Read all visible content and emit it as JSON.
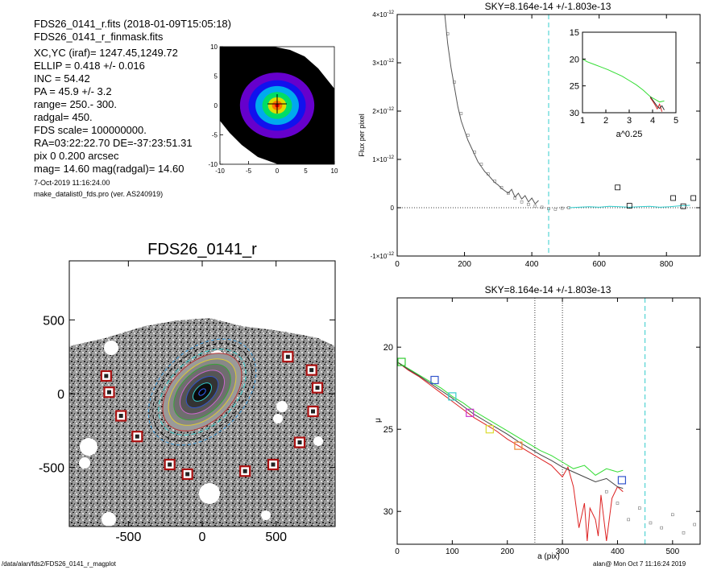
{
  "info": {
    "lines": [
      "FDS26_0141_r.fits  (2018-01-09T15:05:18)",
      "FDS26_0141_r_finmask.fits",
      "XC,YC (iraf)=  1247.45,1249.72",
      "ELLIP = 0.418 +/- 0.016",
      "INC   = 54.42",
      "PA    =  45.9 +/-   3.2",
      "range=  250.-  300.",
      "radgal=  450.",
      "FDS scale=  100000000.",
      "RA=03:22:22.70  DE=-37:23:51.31",
      "pix 0 0.200 arcsec",
      "mag=  14.60  mag(radgal)=  14.60"
    ],
    "date": "7-Oct-2019 11:16:24.00",
    "program": "make_datalist0_fds.pro (ver. AS240919)"
  },
  "footer": {
    "path": "/data/alan/fds2/FDS26_0141_r_magplot",
    "stamp": "alan@  Mon Oct  7 11:16:24 2019"
  },
  "colors": {
    "sky_line": "#33cccc",
    "profile_green": "#33dd33",
    "profile_red": "#dd2222",
    "mask_box": "#aa1111"
  },
  "chart_data": [
    {
      "type": "heatmap",
      "id": "thumbnail",
      "title": "",
      "xlim": [
        -10,
        10
      ],
      "ylim": [
        -10,
        10
      ],
      "xticks": [
        -10,
        -5,
        0,
        5,
        10
      ],
      "yticks": [
        10,
        5,
        0,
        -5,
        -10
      ],
      "xticklabels": [
        "-10",
        "-5",
        "0",
        "5",
        "10"
      ],
      "yticklabels": [
        "10",
        "5",
        "0",
        "-5",
        "-10"
      ],
      "contours": [
        {
          "rx": 6.5,
          "ry": 5.6,
          "color": "#6600cc"
        },
        {
          "rx": 5.0,
          "ry": 4.3,
          "color": "#1111ee"
        },
        {
          "rx": 3.8,
          "ry": 3.3,
          "color": "#00aaee"
        },
        {
          "rx": 2.6,
          "ry": 2.3,
          "color": "#00dd66"
        },
        {
          "rx": 1.6,
          "ry": 1.4,
          "color": "#dddd00"
        },
        {
          "rx": 0.9,
          "ry": 0.8,
          "color": "#ff7700"
        },
        {
          "rx": 0.4,
          "ry": 0.35,
          "color": "#ee0000"
        }
      ]
    },
    {
      "type": "line",
      "id": "flux",
      "title": "SKY=8.164e-14 +/-1.803e-13",
      "xlabel": "",
      "ylabel": "Flux per pixel",
      "xlim": [
        0,
        900
      ],
      "ylim": [
        -1e-12,
        4e-12
      ],
      "xticks": [
        0,
        200,
        400,
        600,
        800
      ],
      "xticklabels": [
        "0",
        "200",
        "400",
        "600",
        "800"
      ],
      "yticks": [
        -1e-12,
        0,
        1e-12,
        2e-12,
        3e-12,
        4e-12
      ],
      "ytick_base": [
        "-1×10",
        "0",
        "1×10",
        "2×10",
        "3×10",
        "4×10"
      ],
      "ytick_exp": [
        "-12",
        "",
        "-12",
        "-12",
        "-12",
        "-12"
      ],
      "sky_x": 450,
      "zero_line": 0,
      "series": [
        {
          "color": "#555555",
          "x": [
            140,
            150,
            160,
            170,
            180,
            190,
            200,
            210,
            220,
            230,
            240,
            250,
            260,
            270,
            280,
            290,
            300,
            310,
            320,
            330,
            340,
            350,
            360,
            370,
            380,
            390,
            400,
            410,
            420
          ],
          "y": [
            4.1e-12,
            3.4e-12,
            2.9e-12,
            2.5e-12,
            2.1e-12,
            1.8e-12,
            1.6e-12,
            1.4e-12,
            1.25e-12,
            1.1e-12,
            9.5e-13,
            8.5e-13,
            7.5e-13,
            6.8e-13,
            6e-13,
            5.2e-13,
            4.7e-13,
            4e-13,
            3.5e-13,
            3e-13,
            3.8e-13,
            2.2e-13,
            3e-13,
            1.8e-13,
            2.5e-13,
            1.2e-13,
            2e-13,
            8e-14,
            1.5e-13
          ]
        },
        {
          "color": "#33cccc",
          "x": [
            510,
            540,
            570,
            600,
            630,
            660,
            690,
            720,
            750,
            780,
            810,
            840,
            870
          ],
          "y": [
            0.0,
            1e-14,
            2e-14,
            1e-14,
            3e-14,
            2e-14,
            1e-14,
            2e-14,
            3e-14,
            1e-14,
            2e-14,
            4e-14,
            5e-14
          ]
        }
      ],
      "points": {
        "x": [
          150,
          170,
          190,
          210,
          230,
          250,
          270,
          290,
          310,
          330,
          350,
          370,
          390,
          410,
          430,
          450,
          470,
          490,
          510
        ],
        "y": [
          3.6e-12,
          2.6e-12,
          1.95e-12,
          1.5e-12,
          1.15e-12,
          9e-13,
          7e-13,
          5.5e-13,
          4.2e-13,
          3e-13,
          2e-13,
          1.2e-13,
          7e-14,
          3e-14,
          1e-14,
          -2e-14,
          -3e-14,
          -1e-14,
          0.0
        ]
      },
      "boxes": {
        "x": [
          655,
          690,
          820,
          850,
          880
        ],
        "y": [
          4.2e-13,
          4e-14,
          2e-13,
          3e-14,
          2e-13
        ]
      },
      "inset": {
        "xlabel": "a^0.25",
        "xlim": [
          1,
          5
        ],
        "ylim": [
          15,
          30
        ],
        "xticks": [
          1,
          2,
          3,
          4,
          5
        ],
        "xticklabels": [
          "1",
          "2",
          "3",
          "4",
          "5"
        ],
        "yticks": [
          15,
          20,
          25,
          30
        ],
        "yticklabels": [
          "15",
          "20",
          "25",
          "30"
        ],
        "series": [
          {
            "color": "#33dd33",
            "x": [
              1.0,
              1.2,
              1.5,
              1.8,
              2.1,
              2.4,
              2.7,
              3.0,
              3.3,
              3.6,
              3.9,
              4.1,
              4.3,
              4.5
            ],
            "y": [
              20.0,
              20.5,
              21.0,
              21.5,
              22.0,
              22.6,
              23.2,
              24.0,
              24.8,
              25.8,
              27.0,
              27.5,
              28.0,
              27.8
            ]
          },
          {
            "color": "#dd2222",
            "x": [
              3.9,
              4.0,
              4.1,
              4.2,
              4.3,
              4.4
            ],
            "y": [
              27.2,
              27.8,
              28.5,
              29.3,
              28.4,
              29.8
            ]
          },
          {
            "color": "#333333",
            "x": [
              3.9,
              4.0,
              4.1,
              4.2,
              4.3,
              4.4,
              4.5
            ],
            "y": [
              27.0,
              27.6,
              28.2,
              28.8,
              29.2,
              28.7,
              29.5
            ]
          }
        ]
      }
    },
    {
      "type": "heatmap",
      "id": "galaxy",
      "title": "FDS26_0141_r",
      "xlim": [
        -900,
        900
      ],
      "ylim": [
        -900,
        900
      ],
      "xticks": [
        -500,
        0,
        500
      ],
      "yticks": [
        500,
        0,
        -500
      ],
      "xticklabels": [
        "-500",
        "0",
        "500"
      ],
      "yticklabels": [
        "500",
        "0",
        "-500"
      ],
      "ellipse": {
        "cx": 0,
        "cy": 0,
        "pa_deg": 45.9
      },
      "mask_boxes": [
        {
          "x": -650,
          "y": 120
        },
        {
          "x": -630,
          "y": 10
        },
        {
          "x": -550,
          "y": -150
        },
        {
          "x": -440,
          "y": -290
        },
        {
          "x": -220,
          "y": -480
        },
        {
          "x": -100,
          "y": -545
        },
        {
          "x": 290,
          "y": -525
        },
        {
          "x": 480,
          "y": -480
        },
        {
          "x": 660,
          "y": -330
        },
        {
          "x": 750,
          "y": -120
        },
        {
          "x": 780,
          "y": 40
        },
        {
          "x": 740,
          "y": 160
        },
        {
          "x": 580,
          "y": 250
        }
      ]
    },
    {
      "type": "line",
      "id": "mu",
      "title": "SKY=8.164e-14 +/-1.803e-13",
      "xlabel": "a (pix)",
      "ylabel": "μ",
      "xlim": [
        0,
        550
      ],
      "ylim": [
        32,
        17
      ],
      "xticks": [
        0,
        100,
        200,
        300,
        400,
        500
      ],
      "xticklabels": [
        "0",
        "100",
        "200",
        "300",
        "400",
        "500"
      ],
      "yticks": [
        20,
        25,
        30
      ],
      "yticklabels": [
        "20",
        "25",
        "30"
      ],
      "range_lines": [
        250,
        300
      ],
      "sky_x": 450,
      "series": [
        {
          "color": "#33dd33",
          "x": [
            0,
            20,
            40,
            60,
            80,
            100,
            120,
            140,
            160,
            180,
            200,
            220,
            240,
            260,
            280,
            300,
            320,
            340,
            360,
            380,
            400,
            410
          ],
          "y": [
            20.9,
            21.3,
            21.7,
            22.1,
            22.5,
            23.0,
            23.4,
            23.9,
            24.3,
            24.7,
            25.1,
            25.5,
            25.9,
            26.3,
            26.6,
            27.0,
            27.4,
            27.2,
            27.8,
            27.4,
            27.6,
            27.5
          ]
        },
        {
          "color": "#dd2222",
          "x": [
            0,
            20,
            40,
            60,
            80,
            100,
            120,
            140,
            160,
            180,
            200,
            220,
            240,
            260,
            280,
            300,
            310,
            320,
            330,
            340,
            345,
            350,
            360,
            365,
            370,
            380,
            390,
            400,
            410
          ],
          "y": [
            20.9,
            21.4,
            21.8,
            22.3,
            22.8,
            23.3,
            23.8,
            24.3,
            24.7,
            25.1,
            25.6,
            26.0,
            26.4,
            26.8,
            27.2,
            27.9,
            27.3,
            28.5,
            31.0,
            29.5,
            31.8,
            29.8,
            30.5,
            31.5,
            29.0,
            31.8,
            29.2,
            28.5,
            28.8
          ]
        },
        {
          "color": "#444444",
          "x": [
            0,
            20,
            40,
            60,
            80,
            100,
            120,
            140,
            160,
            180,
            200,
            220,
            240,
            260,
            280,
            300,
            320,
            340,
            360,
            380,
            400,
            410
          ],
          "y": [
            20.9,
            21.35,
            21.75,
            22.2,
            22.65,
            23.1,
            23.6,
            24.1,
            24.5,
            24.9,
            25.3,
            25.75,
            26.15,
            26.55,
            26.9,
            27.3,
            27.6,
            27.9,
            28.2,
            28.0,
            28.5,
            28.6
          ]
        }
      ],
      "boxes": [
        {
          "x": 8,
          "y": 20.9,
          "color": "#33cc33"
        },
        {
          "x": 68,
          "y": 22.0,
          "color": "#3355cc"
        },
        {
          "x": 100,
          "y": 23.0,
          "color": "#33cccc"
        },
        {
          "x": 132,
          "y": 24.0,
          "color": "#cc33cc"
        },
        {
          "x": 168,
          "y": 25.0,
          "color": "#dddd33"
        },
        {
          "x": 220,
          "y": 26.0,
          "color": "#ee8833"
        },
        {
          "x": 408,
          "y": 28.1,
          "color": "#3355cc"
        }
      ],
      "points": {
        "x": [
          380,
          400,
          420,
          440,
          460,
          480,
          500,
          520,
          540
        ],
        "y": [
          28.8,
          29.5,
          30.5,
          29.8,
          30.7,
          31.0,
          30.2,
          31.3,
          30.8
        ]
      }
    }
  ]
}
